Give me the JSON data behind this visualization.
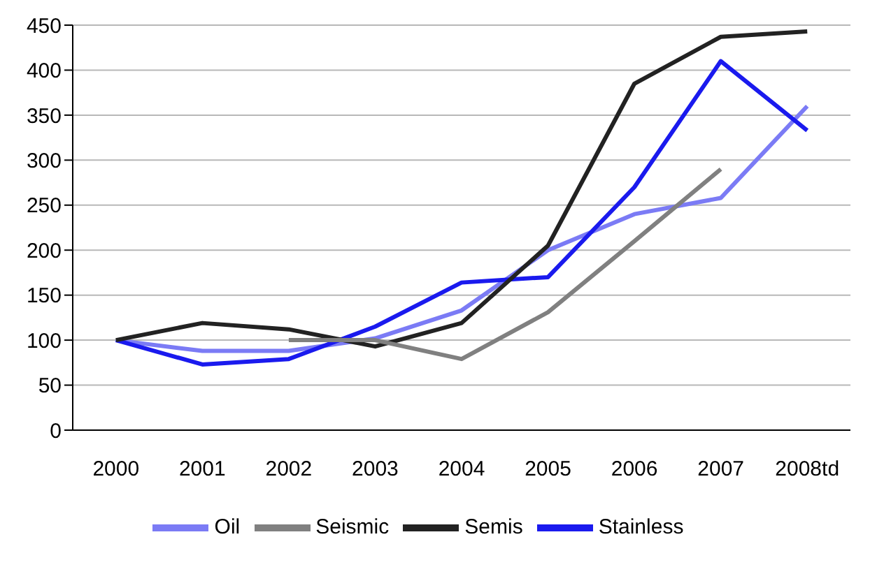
{
  "chart_data": {
    "type": "line",
    "categories": [
      "2000",
      "2001",
      "2002",
      "2003",
      "2004",
      "2005",
      "2006",
      "2007",
      "2008td"
    ],
    "series": [
      {
        "name": "Oil",
        "color": "#7b7bf5",
        "values": [
          100,
          88,
          88,
          102,
          133,
          200,
          240,
          258,
          360
        ]
      },
      {
        "name": "Stainless",
        "color": "#1a1aee",
        "values": [
          100,
          73,
          79,
          115,
          164,
          170,
          270,
          410,
          333
        ]
      },
      {
        "name": "Semis",
        "color": "#222222",
        "values": [
          100,
          119,
          112,
          93,
          119,
          205,
          385,
          437,
          443
        ]
      },
      {
        "name": "Seismic",
        "color": "#808080",
        "values": [
          null,
          null,
          100,
          100,
          79,
          131,
          210,
          290,
          null
        ]
      }
    ],
    "ylim": [
      0,
      450
    ],
    "yticks": [
      0,
      50,
      100,
      150,
      200,
      250,
      300,
      350,
      400,
      450
    ],
    "grid": "y",
    "legend": "bottom",
    "marker": "none",
    "line_style": "solid"
  }
}
